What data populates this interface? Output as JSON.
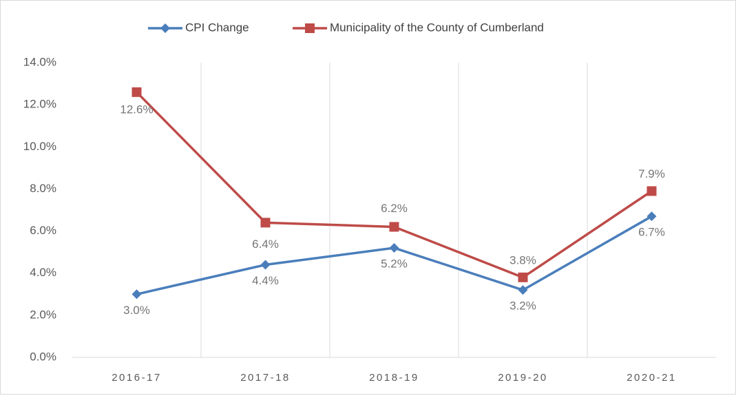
{
  "chart_data": {
    "type": "line",
    "categories": [
      "2016-17",
      "2017-18",
      "2018-19",
      "2019-20",
      "2020-21"
    ],
    "series": [
      {
        "name": "CPI Change",
        "color": "#4a7ebb",
        "marker": "diamond",
        "values": [
          3.0,
          4.4,
          5.2,
          3.2,
          6.7
        ],
        "value_labels": [
          "3.0%",
          "4.4%",
          "5.2%",
          "3.2%",
          "6.7%"
        ]
      },
      {
        "name": "Municipality of the County of Cumberland",
        "color": "#be4b48",
        "marker": "square",
        "values": [
          12.6,
          6.4,
          6.2,
          3.8,
          7.9
        ],
        "value_labels": [
          "12.6%",
          "6.4%",
          "6.2%",
          "3.8%",
          "7.9%"
        ]
      }
    ],
    "ylim": [
      0,
      14
    ],
    "yticks": [
      {
        "value": 0,
        "label": "0.0%"
      },
      {
        "value": 2,
        "label": "2.0%"
      },
      {
        "value": 4,
        "label": "4.0%"
      },
      {
        "value": 6,
        "label": "6.0%"
      },
      {
        "value": 8,
        "label": "8.0%"
      },
      {
        "value": 10,
        "label": "10.0%"
      },
      {
        "value": 12,
        "label": "12.0%"
      },
      {
        "value": 14,
        "label": "14.0%"
      }
    ],
    "legend": "top"
  }
}
